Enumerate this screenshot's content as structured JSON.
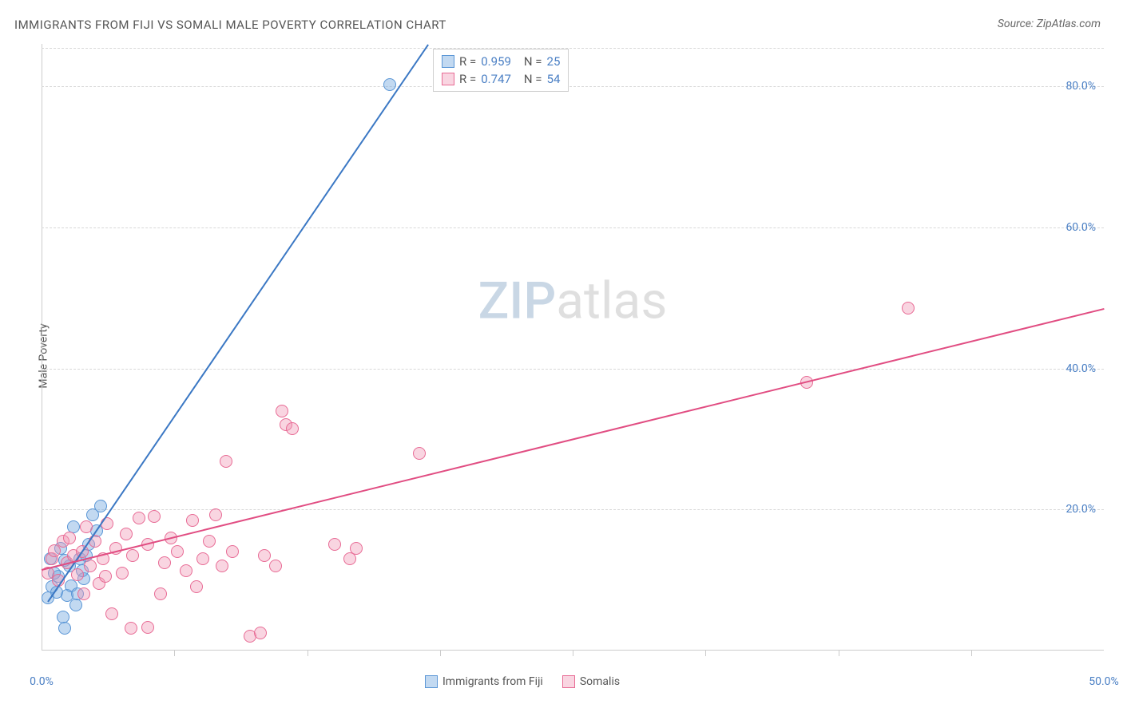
{
  "title": "IMMIGRANTS FROM FIJI VS SOMALI MALE POVERTY CORRELATION CHART",
  "source": "Source: ZipAtlas.com",
  "y_axis_label": "Male Poverty",
  "watermark": {
    "zip": "ZIP",
    "atlas": "atlas"
  },
  "chart": {
    "type": "scatter",
    "background_color": "#ffffff",
    "grid_color": "#d8d8d8",
    "axis_color": "#cccccc",
    "tick_label_color": "#4a7fc4",
    "xlim": [
      0,
      50
    ],
    "ylim": [
      0,
      86
    ],
    "y_ticks": [
      {
        "value": 20,
        "label": "20.0%"
      },
      {
        "value": 40,
        "label": "40.0%"
      },
      {
        "value": 60,
        "label": "60.0%"
      },
      {
        "value": 80,
        "label": "80.0%"
      }
    ],
    "x_ticks": [
      {
        "value": 0,
        "label": "0.0%"
      },
      {
        "value": 50,
        "label": "50.0%"
      }
    ],
    "x_tick_marks": [
      6.25,
      12.5,
      18.75,
      25,
      31.25,
      37.5,
      43.75
    ],
    "series": [
      {
        "name": "Immigrants from Fiji",
        "fill_color": "rgba(120,170,225,0.45)",
        "stroke_color": "#5a96d6",
        "line_color": "#3b78c4",
        "marker_size": 16,
        "R": "0.959",
        "N": "25",
        "trend": {
          "x1": 0.3,
          "y1": 7,
          "x2": 18.2,
          "y2": 86
        },
        "points": [
          [
            0.3,
            7.5
          ],
          [
            0.5,
            9
          ],
          [
            0.7,
            8.3
          ],
          [
            0.8,
            10.5
          ],
          [
            0.6,
            11
          ],
          [
            1.0,
            4.8
          ],
          [
            1.1,
            3.2
          ],
          [
            1.2,
            7.8
          ],
          [
            1.3,
            12
          ],
          [
            1.4,
            9.2
          ],
          [
            1.6,
            6.5
          ],
          [
            1.8,
            13
          ],
          [
            2.0,
            10.2
          ],
          [
            2.2,
            15
          ],
          [
            1.5,
            17.5
          ],
          [
            2.4,
            19.2
          ],
          [
            0.9,
            14.5
          ],
          [
            2.8,
            20.5
          ],
          [
            2.6,
            17
          ],
          [
            0.4,
            13
          ],
          [
            1.7,
            8
          ],
          [
            1.1,
            12.8
          ],
          [
            2.1,
            13.5
          ],
          [
            1.9,
            11.3
          ],
          [
            16.4,
            80.2
          ]
        ]
      },
      {
        "name": "Somalis",
        "fill_color": "rgba(240,150,180,0.40)",
        "stroke_color": "#e86b95",
        "line_color": "#e14d82",
        "marker_size": 16,
        "R": "0.747",
        "N": "54",
        "trend": {
          "x1": 0,
          "y1": 11.5,
          "x2": 50,
          "y2": 48.5
        },
        "points": [
          [
            0.3,
            11
          ],
          [
            0.5,
            13
          ],
          [
            0.6,
            14.2
          ],
          [
            0.8,
            10
          ],
          [
            1.0,
            15.5
          ],
          [
            1.2,
            12.5
          ],
          [
            1.3,
            16
          ],
          [
            1.5,
            13.5
          ],
          [
            1.7,
            10.8
          ],
          [
            1.9,
            14
          ],
          [
            2.1,
            17.5
          ],
          [
            2.3,
            12
          ],
          [
            2.5,
            15.5
          ],
          [
            2.7,
            9.5
          ],
          [
            2.9,
            13
          ],
          [
            3.1,
            18
          ],
          [
            3.3,
            5.2
          ],
          [
            3.5,
            14.5
          ],
          [
            3.8,
            11
          ],
          [
            4.0,
            16.5
          ],
          [
            4.2,
            3.2
          ],
          [
            4.3,
            13.5
          ],
          [
            4.6,
            18.8
          ],
          [
            5.0,
            15
          ],
          [
            5.3,
            19
          ],
          [
            5.6,
            8
          ],
          [
            5.8,
            12.5
          ],
          [
            6.1,
            16
          ],
          [
            6.4,
            14
          ],
          [
            6.8,
            11.3
          ],
          [
            7.1,
            18.5
          ],
          [
            7.3,
            9
          ],
          [
            7.6,
            13
          ],
          [
            7.9,
            15.5
          ],
          [
            8.2,
            19.2
          ],
          [
            8.5,
            12
          ],
          [
            8.7,
            26.8
          ],
          [
            9.0,
            14
          ],
          [
            9.8,
            2.0
          ],
          [
            10.3,
            2.5
          ],
          [
            10.5,
            13.5
          ],
          [
            11.0,
            12
          ],
          [
            11.3,
            34.0
          ],
          [
            11.5,
            32.0
          ],
          [
            11.8,
            31.5
          ],
          [
            13.8,
            15
          ],
          [
            14.5,
            13
          ],
          [
            14.8,
            14.5
          ],
          [
            17.8,
            28.0
          ],
          [
            5.0,
            3.3
          ],
          [
            36.0,
            38.0
          ],
          [
            40.8,
            48.5
          ],
          [
            2.0,
            8
          ],
          [
            3.0,
            10.5
          ]
        ]
      }
    ],
    "correlation_legend": {
      "R_label": "R =",
      "N_label": "N ="
    },
    "bottom_legend": [
      {
        "label": "Immigrants from Fiji",
        "series_idx": 0
      },
      {
        "label": "Somalis",
        "series_idx": 1
      }
    ]
  }
}
